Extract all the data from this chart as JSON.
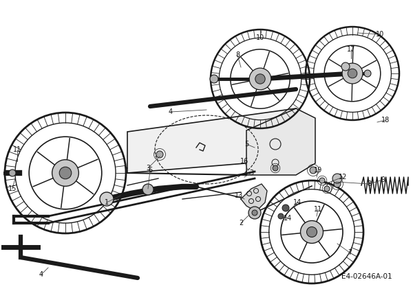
{
  "bg_color": "#ffffff",
  "fig_width": 6.0,
  "fig_height": 4.24,
  "dpi": 100,
  "diagram_label": "E4-02646A-01",
  "line_color": "#1a1a1a",
  "label_fontsize": 7.0,
  "label_color": "#111111"
}
